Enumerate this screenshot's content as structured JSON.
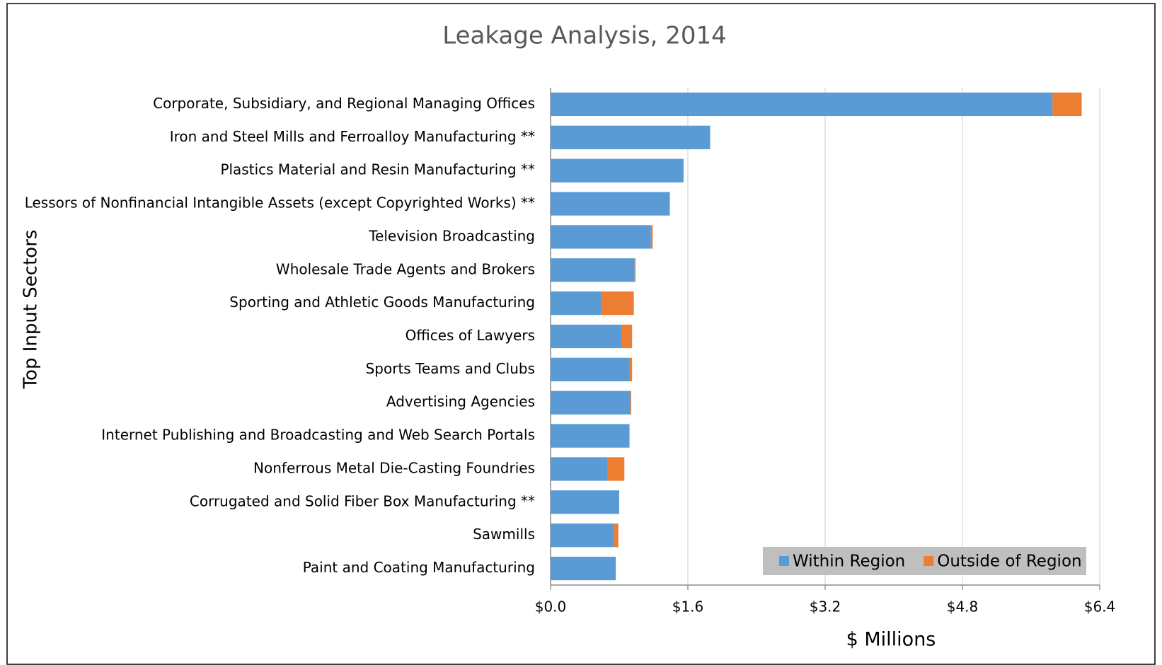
{
  "chart_data": {
    "type": "stacked-barh",
    "title": "Leakage Analysis, 2014",
    "y_label": "Top Input Sectors",
    "x_label": "$ Millions",
    "categories": [
      "Corporate, Subsidiary, and Regional Managing Offices",
      "Iron and Steel Mills and Ferroalloy Manufacturing **",
      "Plastics Material and Resin Manufacturing **",
      "Lessors of Nonfinancial Intangible Assets (except Copyrighted Works) **",
      "Television Broadcasting",
      "Wholesale Trade Agents and Brokers",
      "Sporting and Athletic Goods Manufacturing",
      "Offices of Lawyers",
      "Sports Teams and Clubs",
      "Advertising Agencies",
      "Internet Publishing and Broadcasting and Web Search Portals",
      "Nonferrous Metal Die-Casting Foundries",
      "Corrugated and Solid Fiber Box Manufacturing **",
      "Sawmills",
      "Paint and Coating Manufacturing"
    ],
    "series": [
      {
        "name": "Within Region",
        "color": "#5b9bd5",
        "values": [
          5.85,
          1.86,
          1.55,
          1.39,
          1.17,
          0.98,
          0.59,
          0.83,
          0.92,
          0.93,
          0.92,
          0.66,
          0.8,
          0.74,
          0.76
        ]
      },
      {
        "name": "Outside of Region",
        "color": "#ed7d31",
        "values": [
          0.34,
          0,
          0,
          0,
          0.02,
          0.01,
          0.38,
          0.12,
          0.03,
          0.01,
          0,
          0.2,
          0,
          0.05,
          0
        ]
      }
    ],
    "xlim": [
      0,
      6.4
    ],
    "xticks": [
      {
        "value": 0,
        "label": "$0.0"
      },
      {
        "value": 1.6,
        "label": "$1.6"
      },
      {
        "value": 3.2,
        "label": "$3.2"
      },
      {
        "value": 4.8,
        "label": "$4.8"
      },
      {
        "value": 6.4,
        "label": "$6.4"
      }
    ],
    "grid": true,
    "legend": "lower right"
  }
}
